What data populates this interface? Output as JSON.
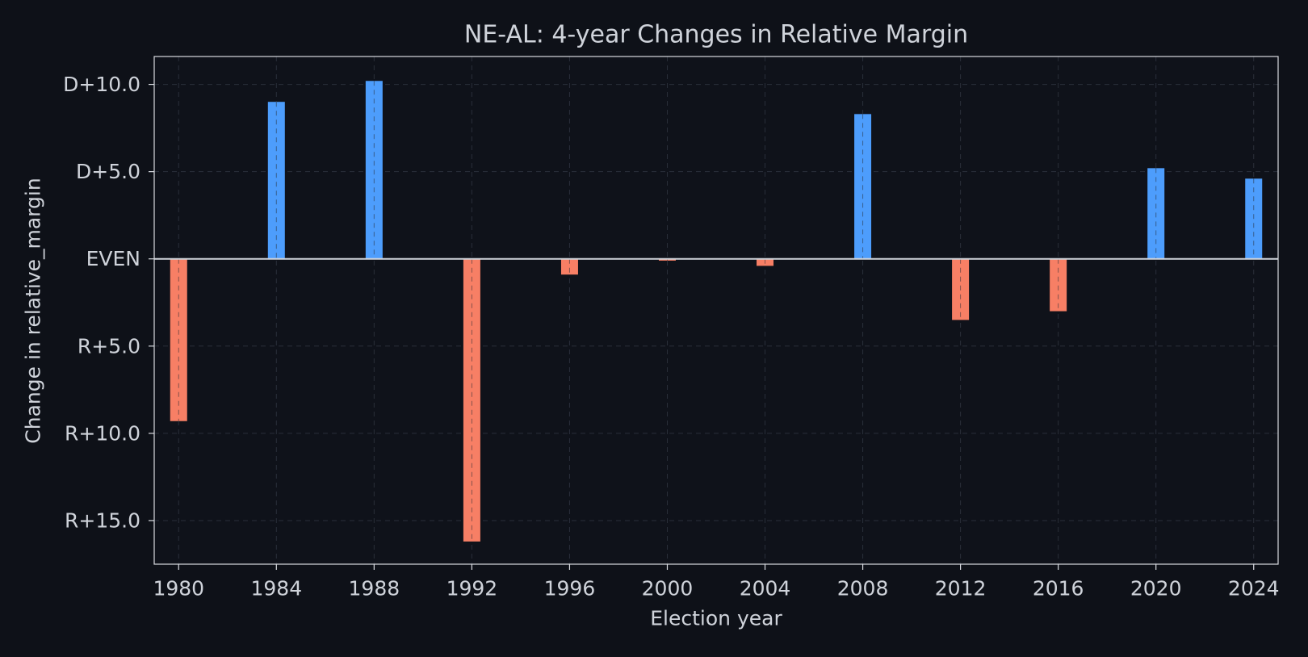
{
  "chart_data": {
    "type": "bar",
    "title": "NE-AL: 4-year Changes in Relative Margin",
    "xlabel": "Election year",
    "ylabel": "Change in relative_margin",
    "x": [
      1980,
      1984,
      1988,
      1992,
      1996,
      2000,
      2004,
      2008,
      2012,
      2016,
      2020,
      2024
    ],
    "values": [
      -9.3,
      9.0,
      10.2,
      -16.2,
      -0.9,
      -0.1,
      -0.4,
      8.3,
      -3.5,
      -3.0,
      5.2,
      4.6
    ],
    "x_ticks": [
      1980,
      1984,
      1988,
      1992,
      1996,
      2000,
      2004,
      2008,
      2012,
      2016,
      2020,
      2024
    ],
    "y_ticks": [
      {
        "value": 10,
        "label": "D+10.0"
      },
      {
        "value": 5,
        "label": "D+5.0"
      },
      {
        "value": 0,
        "label": "EVEN"
      },
      {
        "value": -5,
        "label": "R+5.0"
      },
      {
        "value": -10,
        "label": "R+10.0"
      },
      {
        "value": -15,
        "label": "R+15.0"
      }
    ],
    "xlim": [
      1979,
      2025
    ],
    "ylim": [
      -17.5,
      11.6
    ],
    "grid": true,
    "colors": {
      "positive": "#4d9dfc",
      "negative": "#f77f65",
      "background": "#0e1118",
      "text": "#cfd3da",
      "zero_line": "#cfd3da",
      "grid": "#2a2f3a"
    }
  }
}
